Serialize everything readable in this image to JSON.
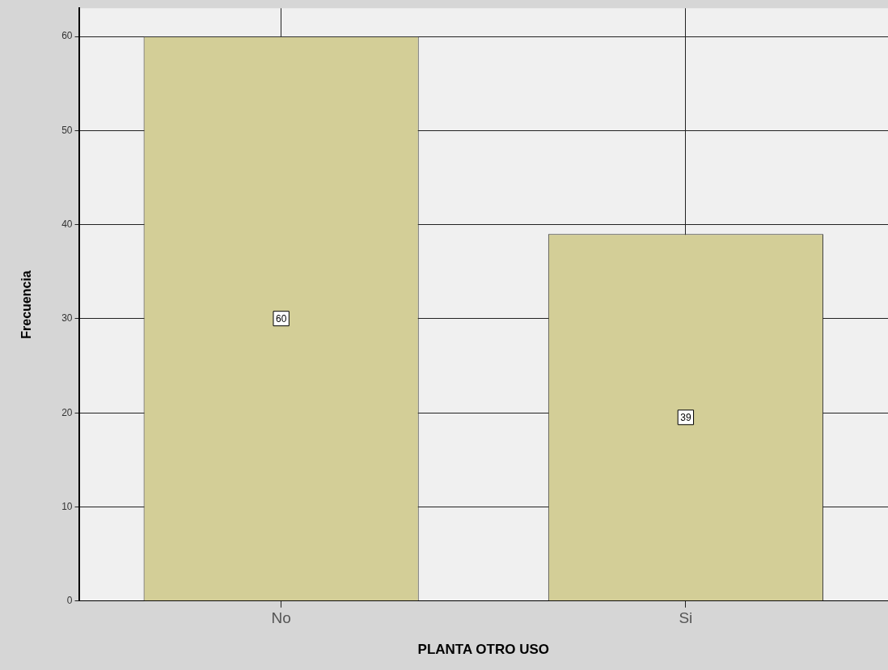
{
  "chart_data": {
    "type": "bar",
    "xlabel": "PLANTA OTRO USO",
    "ylabel": "Frecuencia",
    "categories": [
      "No",
      "Si"
    ],
    "values": [
      60,
      39
    ],
    "color": "#d3ce97",
    "ylim": [
      0,
      63
    ],
    "yticks": [
      0,
      10,
      20,
      30,
      40,
      50,
      60
    ],
    "grid": true,
    "data_labels": true
  }
}
